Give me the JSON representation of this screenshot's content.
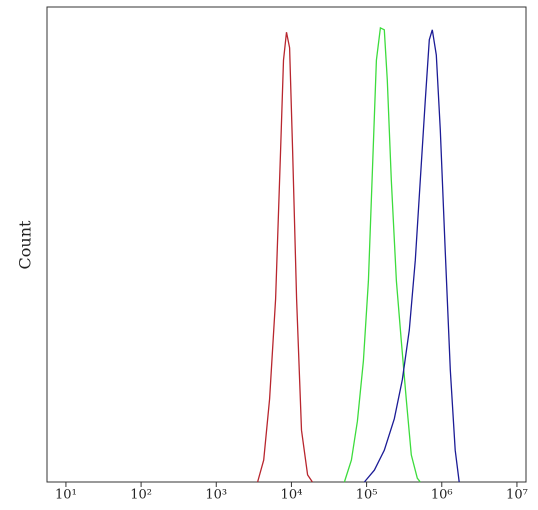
{
  "chart_data": {
    "type": "line",
    "y_label": "Count",
    "x_log": true,
    "xlim": [
      5.6,
      13200000
    ],
    "ylim": [
      0,
      100
    ],
    "xticks": [
      {
        "value": 10,
        "label": "10¹"
      },
      {
        "value": 100,
        "label": "10²"
      },
      {
        "value": 1000,
        "label": "10³"
      },
      {
        "value": 10000,
        "label": "10⁴"
      },
      {
        "value": 100000,
        "label": "10⁵"
      },
      {
        "value": 1000000,
        "label": "10⁶"
      },
      {
        "value": 10000000,
        "label": "10⁷"
      }
    ],
    "series": [
      {
        "color": "#b8262e",
        "x": [
          3550,
          4270,
          5120,
          6150,
          7170,
          7850,
          8610,
          9440,
          10350,
          11700,
          13600,
          16400,
          19000
        ],
        "values": [
          0,
          4.6,
          17.5,
          38.5,
          69.9,
          88.8,
          94.7,
          91.4,
          69.9,
          38.5,
          10.9,
          1.5,
          0
        ]
      },
      {
        "color": "#3ddc3d",
        "x": [
          50700,
          62800,
          75500,
          90800,
          105700,
          119400,
          134900,
          152400,
          172200,
          188800,
          213300,
          248900,
          289700,
          338000,
          393500,
          473000,
          517600
        ],
        "values": [
          0,
          4.6,
          12.8,
          25.5,
          42.3,
          65.5,
          88.8,
          95.6,
          95.2,
          84.6,
          63.6,
          42.3,
          29.7,
          17.1,
          5.7,
          0.8,
          0
        ]
      },
      {
        "color": "#1c1c96",
        "x": [
          93500,
          127000,
          172200,
          233800,
          298500,
          369700,
          444400,
          517600,
          603500,
          682300,
          747700,
          845300,
          955000,
          1112000,
          1297000,
          1510000,
          1706000
        ],
        "values": [
          0,
          2.5,
          6.7,
          13.3,
          21.5,
          32.0,
          46.7,
          63.6,
          80.4,
          93.1,
          95.2,
          89.9,
          74.1,
          48.8,
          23.6,
          6.7,
          0
        ]
      }
    ]
  }
}
